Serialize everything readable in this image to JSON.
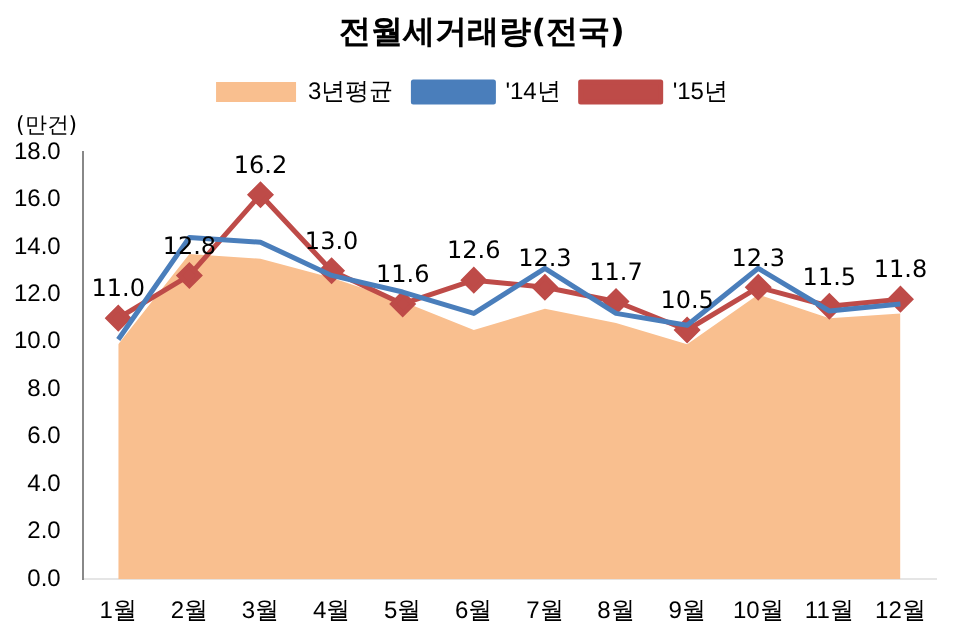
{
  "chart_data": {
    "type": "line",
    "title": "전월세거래량(전국)",
    "ylabel": "(만건)",
    "categories": [
      "1월",
      "2월",
      "3월",
      "4월",
      "5월",
      "6월",
      "7월",
      "8월",
      "9월",
      "10월",
      "11월",
      "12월"
    ],
    "series": [
      {
        "name": "3년평균",
        "type": "area",
        "color": "#f9bf8f",
        "values": [
          9.9,
          13.7,
          13.5,
          12.7,
          11.7,
          10.5,
          11.4,
          10.8,
          9.9,
          12.0,
          11.0,
          11.2
        ]
      },
      {
        "name": "'14년",
        "color": "#4a7ebb",
        "marker": "none",
        "values": [
          10.1,
          14.4,
          14.2,
          12.8,
          12.1,
          11.2,
          13.1,
          11.2,
          10.7,
          13.1,
          11.3,
          11.6
        ]
      },
      {
        "name": "'15년",
        "color": "#be4b48",
        "marker": "diamond",
        "values": [
          11.0,
          12.8,
          16.2,
          13.0,
          11.6,
          12.6,
          12.3,
          11.7,
          10.5,
          12.3,
          11.5,
          11.8
        ],
        "value_labels": [
          "11.0",
          "12.8",
          "16.2",
          "13.0",
          "11.6",
          "12.6",
          "12.3",
          "11.7",
          "10.5",
          "12.3",
          "11.5",
          "11.8"
        ]
      }
    ],
    "ylim": [
      0,
      18
    ],
    "yticks": [
      {
        "value": 0,
        "label": "0.0"
      },
      {
        "value": 2,
        "label": "2.0"
      },
      {
        "value": 4,
        "label": "4.0"
      },
      {
        "value": 6,
        "label": "6.0"
      },
      {
        "value": 8,
        "label": "8.0"
      },
      {
        "value": 10,
        "label": "10.0"
      },
      {
        "value": 12,
        "label": "12.0"
      },
      {
        "value": 14,
        "label": "14.0"
      },
      {
        "value": 16,
        "label": "16.0"
      },
      {
        "value": 18,
        "label": "18.0"
      }
    ],
    "grid": false,
    "legend": "top"
  }
}
